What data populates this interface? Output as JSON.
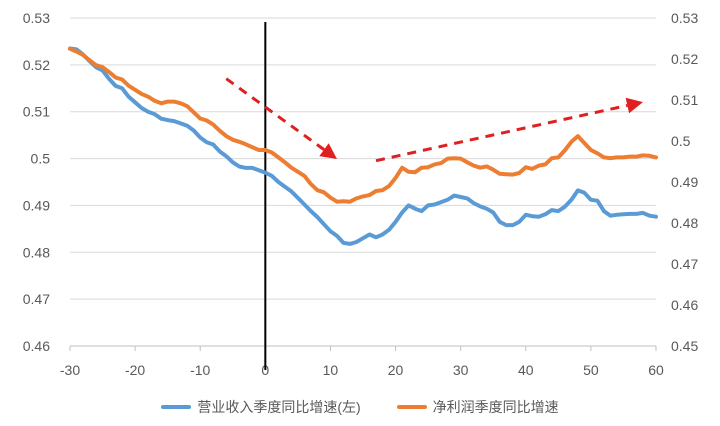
{
  "chart_data": {
    "type": "line",
    "title": "",
    "xlabel": "",
    "ylabel_left": "",
    "ylabel_right": "",
    "xlim": [
      -30,
      60
    ],
    "x_ticks": [
      -30,
      -20,
      -10,
      0,
      10,
      20,
      30,
      40,
      50,
      60
    ],
    "ylim_left": [
      0.46,
      0.53
    ],
    "y_ticks_left": [
      "0.46",
      "0.47",
      "0.48",
      "0.49",
      "0.5",
      "0.51",
      "0.52",
      "0.53"
    ],
    "ylim_right": [
      0.45,
      0.53
    ],
    "y_ticks_right": [
      "0.45",
      "0.46",
      "0.47",
      "0.48",
      "0.49",
      "0.5",
      "0.51",
      "0.52",
      "0.53"
    ],
    "grid": "horizontal",
    "legend_position": "bottom",
    "vertical_marker_x": 0,
    "series": [
      {
        "name": "营业收入季度同比增速(左)",
        "axis": "left",
        "color": "#5B9BD5",
        "x": [
          -30,
          -29,
          -28,
          -27,
          -26,
          -25,
          -24,
          -23,
          -22,
          -21,
          -20,
          -19,
          -18,
          -17,
          -16,
          -15,
          -14,
          -13,
          -12,
          -11,
          -10,
          -9,
          -8,
          -7,
          -6,
          -5,
          -4,
          -3,
          -2,
          -1,
          0,
          1,
          2,
          3,
          4,
          5,
          6,
          7,
          8,
          9,
          10,
          11,
          12,
          13,
          14,
          15,
          16,
          17,
          18,
          19,
          20,
          21,
          22,
          23,
          24,
          25,
          26,
          27,
          28,
          29,
          30,
          31,
          32,
          33,
          34,
          35,
          36,
          37,
          38,
          39,
          40,
          41,
          42,
          43,
          44,
          45,
          46,
          47,
          48,
          49,
          50,
          51,
          52,
          53,
          54,
          55,
          56,
          57,
          58,
          59,
          60
        ],
        "y": [
          0.5235,
          0.5233,
          0.5222,
          0.5208,
          0.5195,
          0.5188,
          0.517,
          0.5155,
          0.515,
          0.5132,
          0.512,
          0.5108,
          0.51,
          0.5095,
          0.5085,
          0.5082,
          0.508,
          0.5075,
          0.507,
          0.506,
          0.5045,
          0.5035,
          0.503,
          0.5015,
          0.5005,
          0.4992,
          0.4983,
          0.498,
          0.498,
          0.4975,
          0.497,
          0.4963,
          0.495,
          0.494,
          0.493,
          0.4916,
          0.4902,
          0.4888,
          0.4875,
          0.486,
          0.4845,
          0.4835,
          0.482,
          0.4818,
          0.4822,
          0.483,
          0.4838,
          0.4832,
          0.4838,
          0.4848,
          0.4865,
          0.4885,
          0.49,
          0.4893,
          0.4888,
          0.49,
          0.4902,
          0.4907,
          0.4912,
          0.4921,
          0.4918,
          0.4915,
          0.4905,
          0.4898,
          0.4893,
          0.4885,
          0.4865,
          0.4858,
          0.4858,
          0.4865,
          0.488,
          0.4877,
          0.4876,
          0.4881,
          0.489,
          0.4888,
          0.4897,
          0.4912,
          0.4932,
          0.4927,
          0.4912,
          0.491,
          0.4888,
          0.4878,
          0.488,
          0.4881,
          0.4882,
          0.4882,
          0.4884,
          0.4878,
          0.4876
        ]
      },
      {
        "name": "净利润季度同比增速",
        "axis": "right",
        "color": "#ED7D31",
        "x": [
          -30,
          -29,
          -28,
          -27,
          -26,
          -25,
          -24,
          -23,
          -22,
          -21,
          -20,
          -19,
          -18,
          -17,
          -16,
          -15,
          -14,
          -13,
          -12,
          -11,
          -10,
          -9,
          -8,
          -7,
          -6,
          -5,
          -4,
          -3,
          -2,
          -1,
          0,
          1,
          2,
          3,
          4,
          5,
          6,
          7,
          8,
          9,
          10,
          11,
          12,
          13,
          14,
          15,
          16,
          17,
          18,
          19,
          20,
          21,
          22,
          23,
          24,
          25,
          26,
          27,
          28,
          29,
          30,
          31,
          32,
          33,
          34,
          35,
          36,
          37,
          38,
          39,
          40,
          41,
          42,
          43,
          44,
          45,
          46,
          47,
          48,
          49,
          50,
          51,
          52,
          53,
          54,
          55,
          56,
          57,
          58,
          59,
          60
        ],
        "y": [
          0.5225,
          0.5218,
          0.521,
          0.5197,
          0.5185,
          0.518,
          0.5168,
          0.5155,
          0.515,
          0.5135,
          0.5125,
          0.5115,
          0.5108,
          0.5098,
          0.5092,
          0.5096,
          0.5096,
          0.5092,
          0.5085,
          0.507,
          0.5055,
          0.505,
          0.504,
          0.5025,
          0.5012,
          0.5003,
          0.4998,
          0.4992,
          0.4985,
          0.4978,
          0.4978,
          0.4972,
          0.496,
          0.4948,
          0.4935,
          0.4925,
          0.4915,
          0.4895,
          0.488,
          0.4875,
          0.4862,
          0.4852,
          0.4853,
          0.4852,
          0.486,
          0.4865,
          0.4868,
          0.4878,
          0.488,
          0.489,
          0.491,
          0.4935,
          0.4925,
          0.4924,
          0.4935,
          0.4936,
          0.4943,
          0.4946,
          0.4957,
          0.4958,
          0.4957,
          0.4948,
          0.494,
          0.4935,
          0.4938,
          0.493,
          0.492,
          0.4919,
          0.4918,
          0.4922,
          0.4936,
          0.4932,
          0.494,
          0.4943,
          0.4958,
          0.496,
          0.4977,
          0.4998,
          0.5012,
          0.4995,
          0.4978,
          0.497,
          0.496,
          0.4958,
          0.496,
          0.496,
          0.4962,
          0.4962,
          0.4965,
          0.4964,
          0.496
        ]
      }
    ],
    "annotations": [
      {
        "type": "arrow",
        "style": "dashed",
        "color": "#E02020",
        "from": [
          -6,
          0.5152
        ],
        "to": [
          11,
          0.4956
        ]
      },
      {
        "type": "arrow",
        "style": "dashed",
        "color": "#E02020",
        "from": [
          17,
          0.4952
        ],
        "to": [
          58,
          0.5095
        ]
      }
    ]
  }
}
